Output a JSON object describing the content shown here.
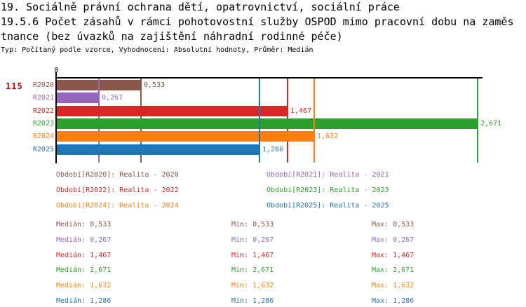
{
  "title": {
    "line1": "19. Sociálně právní ochrana dětí, opatrovnictví, sociální práce",
    "line2": "19.5.6 Počet zásahů v rámci pohotovostní služby OSPOD mimo pracovní dobu na zaměs",
    "line3": "tnance (bez úvazků na zajištění náhradní rodinné péče)",
    "meta": "Typ: Počítaný podle vzorce, Vyhodnocení: Absolutní hodnoty, Průměr: Medián"
  },
  "row_id": "115",
  "axis": {
    "zero_label": "0"
  },
  "stats_labels": {
    "median": "Medián",
    "min": "Min",
    "max": "Max"
  },
  "chart_data": {
    "type": "bar",
    "orientation": "horizontal",
    "title": "19.5.6 Počet zásahů v rámci pohotovostní služby OSPOD mimo pracovní dobu na zaměstnance (bez úvazků na zajištění náhradní rodinné péče)",
    "categories": [
      "R2020",
      "R2021",
      "R2022",
      "R2023",
      "R2024",
      "R2025"
    ],
    "values": [
      0.533,
      0.267,
      1.467,
      2.671,
      1.632,
      1.286
    ],
    "xlim": [
      0,
      2.7
    ],
    "grid": false,
    "legend_position": "below-two-columns",
    "series": [
      {
        "category": "R2020",
        "value": 0.533,
        "value_label": "0,533",
        "color": "#8c564b",
        "legend": "Období[R2020]: Realita - 2020",
        "median": "0,533",
        "min": "0,533",
        "max": "0,533"
      },
      {
        "category": "R2021",
        "value": 0.267,
        "value_label": "0,267",
        "color": "#9467bd",
        "legend": "Období[R2021]: Realita - 2021",
        "median": "0,267",
        "min": "0,267",
        "max": "0,267"
      },
      {
        "category": "R2022",
        "value": 1.467,
        "value_label": "1,467",
        "color": "#d62728",
        "legend": "Období[R2022]: Realita - 2022",
        "median": "1,467",
        "min": "1,467",
        "max": "1,467"
      },
      {
        "category": "R2023",
        "value": 2.671,
        "value_label": "2,671",
        "color": "#2ca02c",
        "legend": "Období[R2023]: Realita - 2023",
        "median": "2,671",
        "min": "2,671",
        "max": "2,671"
      },
      {
        "category": "R2024",
        "value": 1.632,
        "value_label": "1,632",
        "color": "#ff7f0e",
        "legend": "Období[R2024]: Realita - 2024",
        "median": "1,632",
        "min": "1,632",
        "max": "1,632"
      },
      {
        "category": "R2025",
        "value": 1.286,
        "value_label": "1,286",
        "color": "#1f77b4",
        "legend": "Období[R2025]: Realita - 2025",
        "median": "1,286",
        "min": "1,286",
        "max": "1,286"
      }
    ]
  }
}
